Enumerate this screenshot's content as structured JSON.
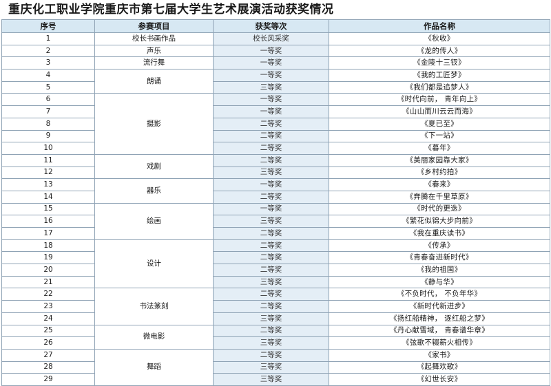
{
  "title": "重庆化工职业学院重庆市第七届大学生艺术展演活动获奖情况",
  "headers": {
    "index": "序号",
    "category": "参赛项目",
    "award": "获奖等次",
    "work": "作品名称"
  },
  "rows": [
    {
      "index": "1",
      "award": "校长风采奖",
      "work": "《秋收》"
    },
    {
      "index": "2",
      "award": "一等奖",
      "work": "《龙的传人》"
    },
    {
      "index": "3",
      "award": "一等奖",
      "work": "《金陵十三钗》"
    },
    {
      "index": "4",
      "award": "一等奖",
      "work": "《我的工匠梦》"
    },
    {
      "index": "5",
      "award": "三等奖",
      "work": "《我们都是追梦人》"
    },
    {
      "index": "6",
      "award": "一等奖",
      "work": "《时代向前， 青年向上》"
    },
    {
      "index": "7",
      "award": "一等奖",
      "work": "《山山而川云云而海》"
    },
    {
      "index": "8",
      "award": "二等奖",
      "work": "《夏已至》"
    },
    {
      "index": "9",
      "award": "二等奖",
      "work": "《下一站》"
    },
    {
      "index": "10",
      "award": "二等奖",
      "work": "《暮年》"
    },
    {
      "index": "11",
      "award": "二等奖",
      "work": "《美丽家园靠大家》"
    },
    {
      "index": "12",
      "award": "三等奖",
      "work": "《乡村约拍》"
    },
    {
      "index": "13",
      "award": "一等奖",
      "work": "《春来》"
    },
    {
      "index": "14",
      "award": "二等奖",
      "work": "《奔腾在千里草原》"
    },
    {
      "index": "15",
      "award": "一等奖",
      "work": "《时代的更迭》"
    },
    {
      "index": "16",
      "award": "三等奖",
      "work": "《繁花似锦大步向前》"
    },
    {
      "index": "17",
      "award": "二等奖",
      "work": "《我在重庆读书》"
    },
    {
      "index": "18",
      "award": "二等奖",
      "work": "《传承》"
    },
    {
      "index": "19",
      "award": "二等奖",
      "work": "《青春奋进新时代》"
    },
    {
      "index": "20",
      "award": "二等奖",
      "work": "《我的祖国》"
    },
    {
      "index": "21",
      "award": "三等奖",
      "work": "《静与华》"
    },
    {
      "index": "22",
      "award": "二等奖",
      "work": "《不负时代， 不负年华》"
    },
    {
      "index": "23",
      "award": "二等奖",
      "work": "《新时代新进步》"
    },
    {
      "index": "24",
      "award": "三等奖",
      "work": "《扬红船精神， 逐红船之梦》"
    },
    {
      "index": "25",
      "award": "二等奖",
      "work": "《丹心献雪域， 青春谱华章》"
    },
    {
      "index": "26",
      "award": "三等奖",
      "work": "《弦歌不辍薪火相传》"
    },
    {
      "index": "27",
      "award": "二等奖",
      "work": "《家书》"
    },
    {
      "index": "28",
      "award": "三等奖",
      "work": "《起舞欢歌》"
    },
    {
      "index": "29",
      "award": "三等奖",
      "work": "《幻世长安》"
    }
  ],
  "categories": [
    {
      "label": "校长书画作品",
      "span": 1
    },
    {
      "label": "声乐",
      "span": 1
    },
    {
      "label": "流行舞",
      "span": 1
    },
    {
      "label": "朗诵",
      "span": 2
    },
    {
      "label": "摄影",
      "span": 5
    },
    {
      "label": "戏剧",
      "span": 2
    },
    {
      "label": "器乐",
      "span": 2
    },
    {
      "label": "绘画",
      "span": 3
    },
    {
      "label": "设计",
      "span": 4
    },
    {
      "label": "书法篆刻",
      "span": 3
    },
    {
      "label": "微电影",
      "span": 2
    },
    {
      "label": "舞蹈",
      "span": 3
    }
  ]
}
